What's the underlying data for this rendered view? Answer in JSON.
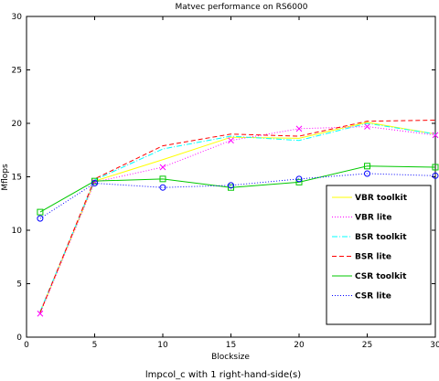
{
  "chart_data": {
    "type": "line",
    "title": "Matvec performance on RS6000",
    "xlabel": "Blocksize",
    "ylabel": "Mflops",
    "caption": "lmpcol_c with 1 right-hand-side(s)",
    "xlim": [
      0,
      30
    ],
    "ylim": [
      0,
      30
    ],
    "xticks": [
      0,
      5,
      10,
      15,
      20,
      25,
      30
    ],
    "yticks": [
      0,
      5,
      10,
      15,
      20,
      25,
      30
    ],
    "legend_position": "bottom-right",
    "x": [
      1,
      5,
      10,
      15,
      20,
      25,
      30
    ],
    "series": [
      {
        "name": "VBR toolkit",
        "color": "#ffff00",
        "dash": "solid",
        "marker": "none",
        "values": [
          2.3,
          14.6,
          16.6,
          18.7,
          18.6,
          20.1,
          19.0
        ]
      },
      {
        "name": "VBR lite",
        "color": "#ff00ff",
        "dash": "dotted",
        "marker": "x",
        "values": [
          2.2,
          14.5,
          15.9,
          18.4,
          19.5,
          19.7,
          18.9
        ]
      },
      {
        "name": "BSR toolkit",
        "color": "#00ffff",
        "dash": "dashdot",
        "marker": "none",
        "values": [
          2.4,
          14.7,
          17.6,
          18.8,
          18.4,
          20.0,
          19.0
        ]
      },
      {
        "name": "BSR lite",
        "color": "#ff0000",
        "dash": "dashed",
        "marker": "none",
        "values": [
          2.3,
          14.8,
          17.9,
          19.0,
          18.8,
          20.2,
          20.3
        ]
      },
      {
        "name": "CSR toolkit",
        "color": "#00c800",
        "dash": "solid",
        "marker": "square",
        "values": [
          11.7,
          14.6,
          14.8,
          14.0,
          14.5,
          16.0,
          15.9
        ]
      },
      {
        "name": "CSR lite",
        "color": "#0000ff",
        "dash": "dotted",
        "marker": "circle",
        "values": [
          11.1,
          14.4,
          14.0,
          14.2,
          14.8,
          15.3,
          15.1
        ]
      }
    ]
  }
}
